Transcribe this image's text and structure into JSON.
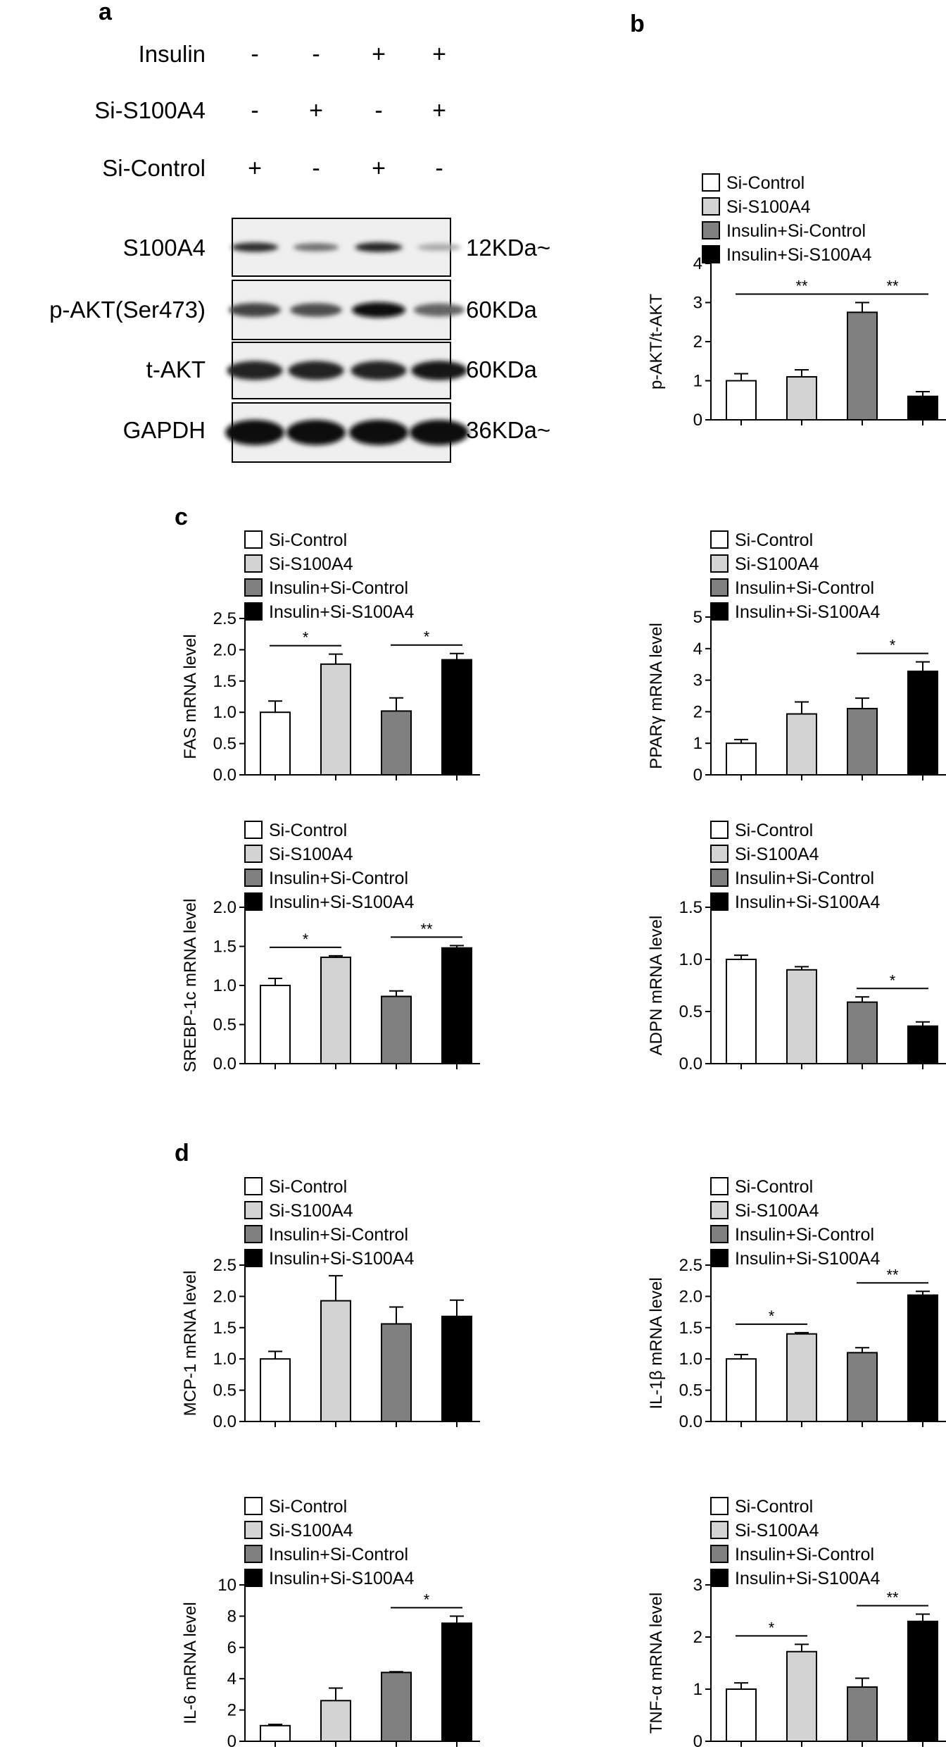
{
  "panel_labels": {
    "a": "a",
    "b": "b",
    "c": "c",
    "d": "d"
  },
  "blot": {
    "conditions": [
      {
        "label": "Insulin",
        "signs": [
          "-",
          "-",
          "+",
          "+"
        ]
      },
      {
        "label": "Si-S100A4",
        "signs": [
          "-",
          "+",
          "-",
          "+"
        ]
      },
      {
        "label": "Si-Control",
        "signs": [
          "+",
          "-",
          "+",
          "-"
        ]
      }
    ],
    "bands": [
      {
        "protein": "S100A4",
        "size": "12KDa~",
        "intensity": [
          0.85,
          0.55,
          0.9,
          0.3
        ]
      },
      {
        "protein": "p-AKT(Ser473)",
        "size": "60KDa",
        "intensity": [
          0.75,
          0.7,
          1.0,
          0.6
        ]
      },
      {
        "protein": "t-AKT",
        "size": "60KDa",
        "intensity": [
          0.9,
          0.9,
          0.9,
          0.95
        ]
      },
      {
        "protein": "GAPDH",
        "size": "36KDa~",
        "intensity": [
          1.0,
          1.0,
          1.0,
          1.0
        ]
      }
    ]
  },
  "legend": [
    "Si-Control",
    "Si-S100A4",
    "Insulin+Si-Control",
    "Insulin+Si-S100A4"
  ],
  "colors": {
    "Si-Control": "#ffffff",
    "Si-S100A4": "#d3d3d3",
    "Insulin+Si-Control": "#808080",
    "Insulin+Si-S100A4": "#000000"
  },
  "chart_data": [
    {
      "type": "bar",
      "panel": "b",
      "ylabel": "p-AKT/t-AKT",
      "ylim": [
        0,
        4
      ],
      "yticks": [
        "0",
        "1",
        "2",
        "3",
        "4"
      ],
      "values": [
        1.0,
        1.1,
        2.75,
        0.6
      ],
      "errors": [
        0.18,
        0.18,
        0.25,
        0.12
      ],
      "significance": [
        {
          "from": 0,
          "to": 2,
          "label": "**"
        },
        {
          "from": 2,
          "to": 3,
          "label": "**"
        }
      ]
    },
    {
      "type": "bar",
      "panel": "c",
      "ylabel": "FAS mRNA level",
      "ylim": [
        0,
        2.5
      ],
      "yticks": [
        "0.0",
        "0.5",
        "1.0",
        "1.5",
        "2.0",
        "2.5"
      ],
      "values": [
        1.0,
        1.77,
        1.02,
        1.84
      ],
      "errors": [
        0.18,
        0.16,
        0.21,
        0.1
      ],
      "significance": [
        {
          "from": 0,
          "to": 1,
          "label": "*"
        },
        {
          "from": 2,
          "to": 3,
          "label": "*"
        }
      ]
    },
    {
      "type": "bar",
      "panel": "c",
      "ylabel": "PPARγ mRNA level",
      "ylim": [
        0,
        5
      ],
      "yticks": [
        "0",
        "1",
        "2",
        "3",
        "4",
        "5"
      ],
      "values": [
        1.0,
        1.93,
        2.1,
        3.28
      ],
      "errors": [
        0.12,
        0.38,
        0.33,
        0.3
      ],
      "significance": [
        {
          "from": 2,
          "to": 3,
          "label": "*"
        }
      ]
    },
    {
      "type": "bar",
      "panel": "c",
      "ylabel": "SREBP-1c mRNA level",
      "ylim": [
        0,
        2.0
      ],
      "yticks": [
        "0.0",
        "0.5",
        "1.0",
        "1.5",
        "2.0"
      ],
      "values": [
        1.0,
        1.36,
        0.86,
        1.48
      ],
      "errors": [
        0.09,
        0.02,
        0.07,
        0.03
      ],
      "significance": [
        {
          "from": 0,
          "to": 1,
          "label": "*"
        },
        {
          "from": 2,
          "to": 3,
          "label": "**"
        }
      ]
    },
    {
      "type": "bar",
      "panel": "c",
      "ylabel": "ADPN mRNA level",
      "ylim": [
        0,
        1.5
      ],
      "yticks": [
        "0.0",
        "0.5",
        "1.0",
        "1.5"
      ],
      "values": [
        1.0,
        0.9,
        0.59,
        0.36
      ],
      "errors": [
        0.04,
        0.03,
        0.05,
        0.04
      ],
      "significance": [
        {
          "from": 2,
          "to": 3,
          "label": "*"
        }
      ]
    },
    {
      "type": "bar",
      "panel": "d",
      "ylabel": "MCP-1 mRNA level",
      "ylim": [
        0,
        2.5
      ],
      "yticks": [
        "0.0",
        "0.5",
        "1.0",
        "1.5",
        "2.0",
        "2.5"
      ],
      "values": [
        1.0,
        1.93,
        1.56,
        1.68
      ],
      "errors": [
        0.12,
        0.4,
        0.27,
        0.26
      ],
      "significance": []
    },
    {
      "type": "bar",
      "panel": "d",
      "ylabel": "IL-1β mRNA level",
      "ylim": [
        0,
        2.5
      ],
      "yticks": [
        "0.0",
        "0.5",
        "1.0",
        "1.5",
        "2.0",
        "2.5"
      ],
      "values": [
        1.0,
        1.4,
        1.1,
        2.02
      ],
      "errors": [
        0.07,
        0.02,
        0.08,
        0.06
      ],
      "significance": [
        {
          "from": 0,
          "to": 1,
          "label": "*"
        },
        {
          "from": 2,
          "to": 3,
          "label": "**"
        }
      ]
    },
    {
      "type": "bar",
      "panel": "d",
      "ylabel": "IL-6 mRNA level",
      "ylim": [
        0,
        10
      ],
      "yticks": [
        "0",
        "2",
        "4",
        "6",
        "8",
        "10"
      ],
      "values": [
        1.0,
        2.6,
        4.4,
        7.55
      ],
      "errors": [
        0.08,
        0.8,
        0.05,
        0.45
      ],
      "significance": [
        {
          "from": 2,
          "to": 3,
          "label": "*"
        }
      ]
    },
    {
      "type": "bar",
      "panel": "d",
      "ylabel": "TNF-α mRNA level",
      "ylim": [
        0,
        3
      ],
      "yticks": [
        "0",
        "1",
        "2",
        "3"
      ],
      "values": [
        1.0,
        1.72,
        1.04,
        2.3
      ],
      "errors": [
        0.12,
        0.14,
        0.17,
        0.14
      ],
      "significance": [
        {
          "from": 0,
          "to": 1,
          "label": "*"
        },
        {
          "from": 2,
          "to": 3,
          "label": "**"
        }
      ]
    }
  ]
}
